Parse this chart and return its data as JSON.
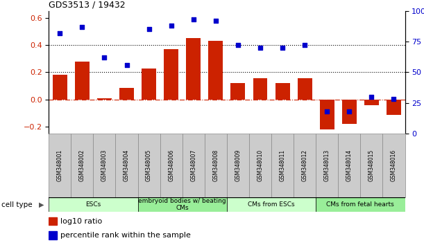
{
  "title": "GDS3513 / 19432",
  "samples": [
    "GSM348001",
    "GSM348002",
    "GSM348003",
    "GSM348004",
    "GSM348005",
    "GSM348006",
    "GSM348007",
    "GSM348008",
    "GSM348009",
    "GSM348010",
    "GSM348011",
    "GSM348012",
    "GSM348013",
    "GSM348014",
    "GSM348015",
    "GSM348016"
  ],
  "log10_ratio": [
    0.18,
    0.28,
    0.01,
    0.085,
    0.23,
    0.37,
    0.45,
    0.43,
    0.12,
    0.155,
    0.12,
    0.155,
    -0.22,
    -0.18,
    -0.04,
    -0.115
  ],
  "percentile_rank": [
    82,
    87,
    62,
    56,
    85,
    88,
    93,
    92,
    72,
    70,
    70,
    72,
    18,
    18,
    30,
    28
  ],
  "bar_color": "#cc2200",
  "dot_color": "#0000cc",
  "ylim_left": [
    -0.25,
    0.65
  ],
  "ylim_right": [
    0,
    100
  ],
  "yticks_left": [
    -0.2,
    0.0,
    0.2,
    0.4,
    0.6
  ],
  "yticks_right": [
    0,
    25,
    50,
    75,
    100
  ],
  "cell_type_groups": [
    {
      "label": "ESCs",
      "start": 0,
      "end": 3,
      "color": "#ccffcc"
    },
    {
      "label": "embryoid bodies w/ beating\nCMs",
      "start": 4,
      "end": 7,
      "color": "#99ee99"
    },
    {
      "label": "CMs from ESCs",
      "start": 8,
      "end": 11,
      "color": "#ccffcc"
    },
    {
      "label": "CMs from fetal hearts",
      "start": 12,
      "end": 15,
      "color": "#99ee99"
    }
  ],
  "legend_bar_label": "log10 ratio",
  "legend_dot_label": "percentile rank within the sample",
  "cell_type_label": "cell type",
  "label_box_color": "#cccccc",
  "label_box_edgecolor": "#888888"
}
